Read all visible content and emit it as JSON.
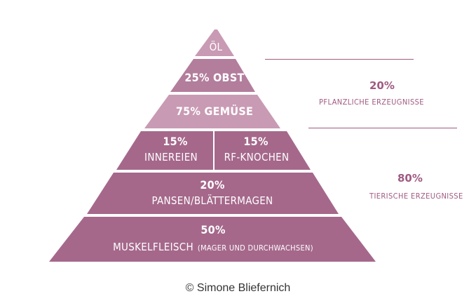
{
  "levels": [
    {
      "id": "oel",
      "label": "ÖL"
    },
    {
      "id": "obst",
      "label": "25% OBST"
    },
    {
      "id": "gemuese",
      "label": "75% GEMÜSE"
    },
    {
      "id": "innereien",
      "pct": "15%",
      "label": "INNEREIEN"
    },
    {
      "id": "rf-knochen",
      "pct": "15%",
      "label": "RF-KNOCHEN"
    },
    {
      "id": "pansen",
      "pct": "20%",
      "label": "PANSEN/BLÄTTERMAGEN"
    },
    {
      "id": "muskelfleisch",
      "pct": "50%",
      "label": "MUSKELFLEISCH",
      "sublabel": "(MAGER UND DURCHWACHSEN)"
    }
  ],
  "groups": [
    {
      "pct": "20%",
      "label": "PFLANZLICHE ERZEUGNISSE"
    },
    {
      "pct": "80%",
      "label": "TIERISCHE ERZEUGNISSE"
    }
  ],
  "colors": {
    "light": "#c99ab4",
    "medium": "#b37d9c",
    "dark": "#a5688b",
    "accent": "#a05a82"
  },
  "copyright": "© Simone Bliefernich"
}
